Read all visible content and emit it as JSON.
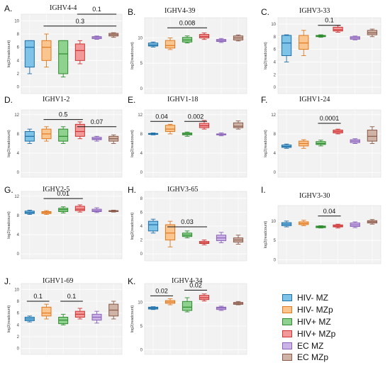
{
  "legend": [
    {
      "label": "HIV- MZ",
      "fill": "#7ec3e8",
      "stroke": "#1f6fa8"
    },
    {
      "label": "HIV- MZp",
      "fill": "#fbc58f",
      "stroke": "#e0791f"
    },
    {
      "label": "HIV+ MZ",
      "fill": "#8fd28f",
      "stroke": "#2e8b2e"
    },
    {
      "label": "HIV+ MZp",
      "fill": "#f29a9a",
      "stroke": "#cc3333"
    },
    {
      "label": "EC MZ",
      "fill": "#cdb4e6",
      "stroke": "#8a63b8"
    },
    {
      "label": "EC MZp",
      "fill": "#cfb3a6",
      "stroke": "#8a5a4a"
    }
  ],
  "y_axis_label": "log2(readcount)",
  "chart_data": [
    {
      "type": "box",
      "letter": "A.",
      "title": "IGHV4-4",
      "ylabel": "log2(readcount)",
      "ylim": [
        -1,
        11
      ],
      "yticks": [
        0,
        2,
        4,
        6,
        8,
        10
      ],
      "boxes": [
        [
          2,
          3,
          6,
          7,
          7
        ],
        [
          3,
          4,
          6,
          7,
          8
        ],
        [
          1.5,
          2,
          5,
          7,
          7
        ],
        [
          3.5,
          4,
          5.5,
          6.5,
          7
        ],
        [
          7.2,
          7.3,
          7.5,
          7.6,
          7.7
        ],
        [
          7.5,
          7.7,
          7.9,
          8.1,
          8.2
        ]
      ],
      "brackets": [
        {
          "from": 1,
          "to": 5,
          "y": 9.2,
          "label": "0.3"
        },
        {
          "from": 3,
          "to": 5,
          "y": 11,
          "label": "0.1"
        }
      ]
    },
    {
      "type": "box",
      "letter": "B.",
      "title": "IGHV4-39",
      "ylabel": "log2(readcount)",
      "ylim": [
        -1,
        14
      ],
      "yticks": [
        0,
        5,
        10
      ],
      "boxes": [
        [
          8.2,
          8.4,
          8.6,
          9,
          9.2
        ],
        [
          7.7,
          8,
          8.5,
          9.5,
          10
        ],
        [
          9,
          9.2,
          9.6,
          10.1,
          10.4
        ],
        [
          9.7,
          10,
          10.3,
          10.7,
          11
        ],
        [
          9.1,
          9.3,
          9.5,
          9.7,
          9.9
        ],
        [
          9.4,
          9.6,
          10,
          10.4,
          10.6
        ]
      ],
      "brackets": [
        {
          "from": 1,
          "to": 3,
          "y": 12,
          "label": "0.008"
        }
      ]
    },
    {
      "type": "box",
      "letter": "C.",
      "title": "IGHV3-33",
      "ylabel": "log2(readcount)",
      "ylim": [
        -1,
        11
      ],
      "yticks": [
        0,
        2,
        4,
        6,
        8,
        10
      ],
      "boxes": [
        [
          4,
          5,
          7,
          8.2,
          8.3
        ],
        [
          5,
          6,
          7,
          8.2,
          9
        ],
        [
          7.9,
          8,
          8.1,
          8.2,
          8.3
        ],
        [
          8.7,
          8.9,
          9.1,
          9.5,
          9.8
        ],
        [
          7.5,
          7.6,
          7.8,
          8,
          8.1
        ],
        [
          8,
          8.3,
          8.6,
          9,
          9.2
        ]
      ],
      "brackets": [
        {
          "from": 2,
          "to": 3,
          "y": 9.8,
          "label": "0.1"
        }
      ]
    },
    {
      "type": "box",
      "letter": "D.",
      "title": "IGHV1-2",
      "ylabel": "log2(readcount)",
      "ylim": [
        -1,
        13
      ],
      "yticks": [
        0,
        4,
        8,
        12
      ],
      "boxes": [
        [
          6,
          6.5,
          7.5,
          8.5,
          9
        ],
        [
          6.5,
          7,
          8,
          9,
          9.5
        ],
        [
          6,
          6.5,
          7.5,
          9,
          9.5
        ],
        [
          7,
          7.5,
          8.5,
          10,
          10.5
        ],
        [
          6.5,
          6.8,
          7,
          7.3,
          7.5
        ],
        [
          6,
          6.5,
          7,
          7.5,
          7.8
        ]
      ],
      "brackets": [
        {
          "from": 1,
          "to": 3,
          "y": 11,
          "label": "0.5"
        },
        {
          "from": 3,
          "to": 5,
          "y": 9.5,
          "label": "0.07"
        }
      ]
    },
    {
      "type": "box",
      "letter": "E.",
      "title": "IGHV1-18",
      "ylabel": "log2(readcount)",
      "ylim": [
        -1,
        13
      ],
      "yticks": [
        0,
        4,
        8,
        12
      ],
      "boxes": [
        [
          7.8,
          7.9,
          8,
          8.1,
          8.2
        ],
        [
          8,
          8.5,
          9,
          9.8,
          10
        ],
        [
          7.5,
          7.8,
          8,
          8.2,
          8.4
        ],
        [
          9,
          9.3,
          9.7,
          10.2,
          10.8
        ],
        [
          7.6,
          7.8,
          7.9,
          8,
          8.2
        ],
        [
          9,
          9.3,
          9.6,
          10.3,
          10.7
        ]
      ],
      "brackets": [
        {
          "from": 0,
          "to": 1,
          "y": 10.6,
          "label": "0.04"
        },
        {
          "from": 2,
          "to": 3,
          "y": 10.6,
          "label": "0.002"
        }
      ]
    },
    {
      "type": "box",
      "letter": "F.",
      "title": "IGHV1-24",
      "ylabel": "log2(readcount)",
      "ylim": [
        -1,
        13
      ],
      "yticks": [
        0,
        4,
        8,
        12
      ],
      "boxes": [
        [
          5,
          5.2,
          5.4,
          5.7,
          5.9
        ],
        [
          5,
          5.5,
          6,
          6.5,
          6.8
        ],
        [
          5.5,
          5.8,
          6,
          6.4,
          6.7
        ],
        [
          8,
          8.2,
          8.5,
          8.8,
          9
        ],
        [
          6,
          6.2,
          6.5,
          6.8,
          7
        ],
        [
          6,
          6.5,
          7.5,
          8.8,
          9.5
        ]
      ],
      "brackets": [
        {
          "from": 2,
          "to": 3,
          "y": 10.2,
          "label": "0.0001"
        }
      ]
    },
    {
      "type": "box",
      "letter": "G.",
      "title": "IGHV2-5",
      "ylabel": "log2(readcount)",
      "ylim": [
        -1,
        13
      ],
      "yticks": [
        0,
        4,
        8,
        12
      ],
      "boxes": [
        [
          8.2,
          8.4,
          8.6,
          8.9,
          9.1
        ],
        [
          8.2,
          8.4,
          8.6,
          8.8,
          9
        ],
        [
          8.5,
          8.8,
          9.2,
          9.5,
          9.8
        ],
        [
          8.7,
          9,
          9.3,
          9.9,
          10.2
        ],
        [
          8.6,
          8.8,
          9,
          9.3,
          9.6
        ],
        [
          8.7,
          8.8,
          8.9,
          9,
          9.1
        ]
      ],
      "brackets": [
        {
          "from": 1,
          "to": 3,
          "y": 11.5,
          "label": "0.01"
        }
      ]
    },
    {
      "type": "box",
      "letter": "H.",
      "title": "IGHV3-65",
      "ylabel": "log2(readcount)",
      "ylim": [
        -1,
        9
      ],
      "yticks": [
        0,
        2,
        4,
        6,
        8
      ],
      "boxes": [
        [
          3,
          3.3,
          4.2,
          4.7,
          5
        ],
        [
          1,
          2,
          3,
          4.2,
          4.7
        ],
        [
          2.3,
          2.5,
          2.7,
          3,
          3.3
        ],
        [
          1.3,
          1.5,
          1.6,
          1.8,
          2
        ],
        [
          1.6,
          1.9,
          2.3,
          2.7,
          3.1
        ],
        [
          1.4,
          1.7,
          2,
          2.3,
          2.7
        ]
      ],
      "brackets": [
        {
          "from": 1,
          "to": 3,
          "y": 3.9,
          "label": "0.03"
        }
      ]
    },
    {
      "type": "box",
      "letter": "I.",
      "title": "IGHV3-30",
      "ylabel": "log2(readcount)",
      "ylim": [
        -1,
        14
      ],
      "yticks": [
        0,
        5,
        10
      ],
      "boxes": [
        [
          8.5,
          8.8,
          9.2,
          9.6,
          10
        ],
        [
          8.8,
          9.1,
          9.4,
          9.8,
          10.2
        ],
        [
          8.2,
          8.3,
          8.5,
          8.7,
          8.8
        ],
        [
          8.2,
          8.5,
          8.7,
          9,
          9.2
        ],
        [
          8.3,
          8.6,
          9,
          9.5,
          9.8
        ],
        [
          9.2,
          9.5,
          9.8,
          10.1,
          10.4
        ]
      ],
      "brackets": [
        {
          "from": 2,
          "to": 3,
          "y": 11.3,
          "label": "0.04"
        }
      ]
    },
    {
      "type": "box",
      "letter": "J.",
      "title": "IGHV1-69",
      "ylabel": "log2(readcount)",
      "ylim": [
        -1,
        11
      ],
      "yticks": [
        0,
        2,
        4,
        6,
        8,
        10
      ],
      "boxes": [
        [
          4.5,
          4.7,
          5,
          5.3,
          5.5
        ],
        [
          5,
          5.5,
          6,
          7,
          7.5
        ],
        [
          4,
          4.2,
          4.8,
          5.3,
          5.8
        ],
        [
          5,
          5.3,
          5.8,
          6.3,
          6.8
        ],
        [
          4.3,
          4.8,
          5.3,
          5.8,
          6.3
        ],
        [
          5,
          5.5,
          6.5,
          7.5,
          8
        ]
      ],
      "brackets": [
        {
          "from": 0,
          "to": 1,
          "y": 8,
          "label": "0.1"
        },
        {
          "from": 2,
          "to": 3,
          "y": 8,
          "label": "0.1"
        }
      ]
    },
    {
      "type": "box",
      "letter": "K.",
      "title": "IGHV4-34",
      "ylabel": "log2(readcount)",
      "ylim": [
        -1,
        14
      ],
      "yticks": [
        0,
        5,
        10
      ],
      "boxes": [
        [
          8.5,
          8.6,
          8.8,
          9,
          9.1
        ],
        [
          9.5,
          9.8,
          10.1,
          10.4,
          10.8
        ],
        [
          8,
          8.3,
          9,
          10.2,
          11
        ],
        [
          10.3,
          10.6,
          11,
          11.5,
          11.8
        ],
        [
          8.3,
          8.5,
          8.8,
          9,
          9.2
        ],
        [
          9.5,
          9.6,
          9.8,
          10,
          10.2
        ]
      ],
      "brackets": [
        {
          "from": 0,
          "to": 1,
          "y": 11.4,
          "label": "0.02"
        },
        {
          "from": 2,
          "to": 3,
          "y": 12.6,
          "label": "0.02"
        }
      ]
    }
  ]
}
